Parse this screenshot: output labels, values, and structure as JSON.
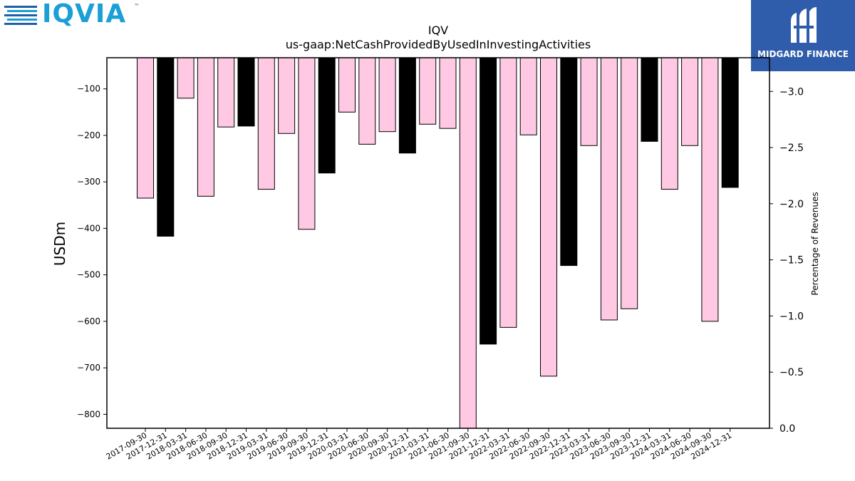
{
  "branding": {
    "left_logo_text": "IQVIA",
    "left_logo_tm": "™",
    "left_logo_color": "#1a9fd6",
    "right_logo_text": "MIDGARD FINANCE",
    "right_logo_bg": "#2f5dab"
  },
  "chart_data": {
    "type": "bar",
    "title": "IQV",
    "subtitle": "us-gaap:NetCashProvidedByUsedInInvestingActivities",
    "ylabel": "USDm",
    "y2label": "Percentage of Revenues",
    "ylim": [
      -830,
      -33
    ],
    "y2lim": [
      0.0,
      -3.3
    ],
    "yticks": [
      -100,
      -200,
      -300,
      -400,
      -500,
      -600,
      -700,
      -800
    ],
    "y2ticks": [
      0.0,
      -0.5,
      -1.0,
      -1.5,
      -2.0,
      -2.5,
      -3.0
    ],
    "y2tick_labels": [
      "0.0",
      "−0.5",
      "−1.0",
      "−1.5",
      "−2.0",
      "−2.5",
      "−3.0"
    ],
    "ytick_labels": [
      "−100",
      "−200",
      "−300",
      "−400",
      "−500",
      "−600",
      "−700",
      "−800"
    ],
    "categories": [
      "2017-09-30",
      "2017-12-31",
      "2018-03-31",
      "2018-06-30",
      "2018-09-30",
      "2018-12-31",
      "2019-03-31",
      "2019-06-30",
      "2019-09-30",
      "2019-12-31",
      "2020-03-31",
      "2020-06-30",
      "2020-09-30",
      "2020-12-31",
      "2021-03-31",
      "2021-06-30",
      "2021-09-30",
      "2021-12-31",
      "2022-03-31",
      "2022-06-30",
      "2022-09-30",
      "2022-12-31",
      "2023-03-31",
      "2023-06-30",
      "2023-09-30",
      "2023-12-31",
      "2024-03-31",
      "2024-06-30",
      "2024-09-30",
      "2024-12-31"
    ],
    "values": [
      -335,
      -417,
      -120,
      -331,
      -182,
      -180,
      -316,
      -196,
      -402,
      -281,
      -150,
      -219,
      -192,
      -238,
      -176,
      -185,
      -830,
      -649,
      -613,
      -199,
      -718,
      -480,
      -222,
      -597,
      -573,
      -213,
      -316,
      -222,
      -600,
      -312
    ],
    "colors": [
      "#ffc8e3",
      "#000000",
      "#ffc8e3",
      "#ffc8e3",
      "#ffc8e3",
      "#000000",
      "#ffc8e3",
      "#ffc8e3",
      "#ffc8e3",
      "#000000",
      "#ffc8e3",
      "#ffc8e3",
      "#ffc8e3",
      "#000000",
      "#ffc8e3",
      "#ffc8e3",
      "#ffc8e3",
      "#000000",
      "#ffc8e3",
      "#ffc8e3",
      "#ffc8e3",
      "#000000",
      "#ffc8e3",
      "#ffc8e3",
      "#ffc8e3",
      "#000000",
      "#ffc8e3",
      "#ffc8e3",
      "#ffc8e3",
      "#000000"
    ],
    "grid": false,
    "legend": "none"
  }
}
